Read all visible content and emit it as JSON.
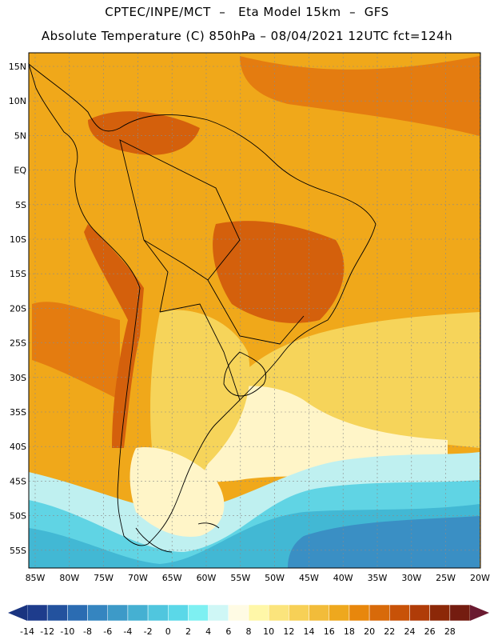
{
  "title_line1": "CPTEC/INPE/MCT  –   Eta Model 15km  –  GFS",
  "title_line2": "Absolute Temperature (C) 850hPa – 08/04/2021 12UTC fct=124h",
  "lat_labels": [
    "15N",
    "10N",
    "5N",
    "EQ",
    "5S",
    "10S",
    "15S",
    "20S",
    "25S",
    "30S",
    "35S",
    "40S",
    "45S",
    "50S",
    "55S"
  ],
  "lon_labels": [
    "85W",
    "80W",
    "75W",
    "70W",
    "65W",
    "60W",
    "55W",
    "50W",
    "45W",
    "40W",
    "35W",
    "30W",
    "25W",
    "20W"
  ],
  "colorbar": {
    "labels": [
      "-14",
      "-12",
      "-10",
      "-8",
      "-6",
      "-4",
      "-2",
      "0",
      "2",
      "4",
      "6",
      "8",
      "10",
      "12",
      "14",
      "16",
      "18",
      "20",
      "22",
      "24",
      "26",
      "28"
    ],
    "colors": [
      "#1e3c8c",
      "#23529e",
      "#2b6cb2",
      "#3585c0",
      "#3d9ac8",
      "#45b0d2",
      "#50c6de",
      "#5bd8e8",
      "#7ef0f2",
      "#cff7f6",
      "#fffbe4",
      "#fff7a8",
      "#fbe47c",
      "#f7d056",
      "#f2bc3a",
      "#eea81e",
      "#e8870c",
      "#d86a0a",
      "#c85208",
      "#b03c08",
      "#8c2808",
      "#741c10"
    ],
    "under_color": "#1a3480",
    "over_color": "#6a1a30"
  },
  "map": {
    "background": "#f0a81a",
    "ocean_warm": "#f2b214",
    "warm_patch": "#e47c10",
    "hot_patch": "#d4600c",
    "mild_patch": "#f6d45a",
    "cool_patch": "#fff5c8",
    "cold_band_light": "#bff0f0",
    "cold_band": "#60d4e4",
    "cold_band_deep": "#42b8d4",
    "cold_core": "#3a8fc4"
  }
}
